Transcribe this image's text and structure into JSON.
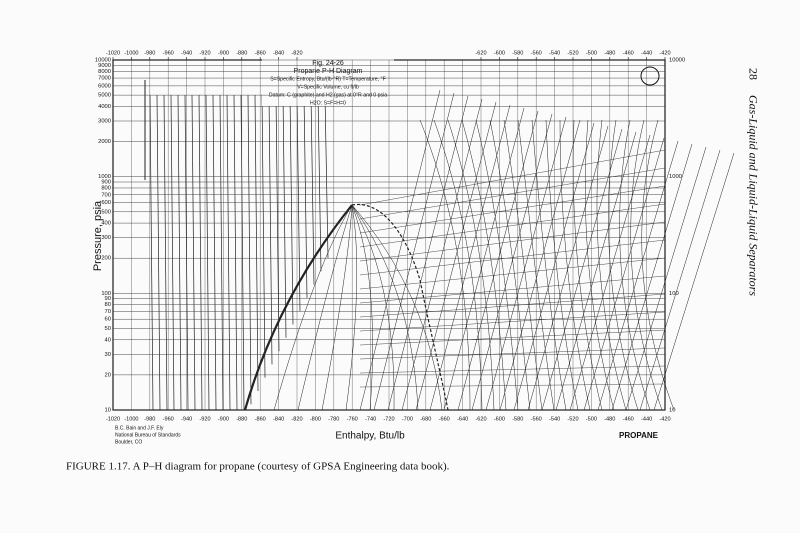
{
  "header": {
    "page_number": "28",
    "running_title": "Gas-Liquid and Liquid-Liquid Separators"
  },
  "figure": {
    "title_block": [
      "Fig. 24-26",
      "Propane P-H Diagram",
      "S=Specific Entropy, Btu/(lb·°R)  T=Temperature, °F",
      "V=Specific Volume, cu ft/lb",
      "Datum: C (graphite) and H2 (gas) at 0°R and 0 psia",
      "H2O: S=F=H=0"
    ],
    "x_axis_label": "Enthalpy, Btu/lb",
    "y_axis_label": "Pressure, psia",
    "bottom_ticks": [
      -1020,
      -1000,
      -980,
      -960,
      -940,
      -920,
      -900,
      -880,
      -860,
      -840,
      -820,
      -800,
      -780,
      -760,
      -740,
      -720,
      -700,
      -680,
      -660,
      -640,
      -620,
      -600,
      -580,
      -560,
      -540,
      -520,
      -500,
      -480,
      -460,
      -440,
      -420
    ],
    "top_ticks_left": [
      -1020,
      -1000,
      -980,
      -960,
      -940,
      -920,
      -900,
      -880,
      -860,
      -840,
      -820
    ],
    "top_ticks_right": [
      -620,
      -600,
      -580,
      -560,
      -540,
      -520,
      -500,
      -480,
      -460,
      -440,
      -420
    ],
    "left_ticks": [
      10000,
      9000,
      8000,
      7000,
      6000,
      5000,
      4000,
      3000,
      2000,
      1000,
      900,
      800,
      700,
      600,
      500,
      400,
      300,
      200,
      100,
      90,
      80,
      70,
      60,
      50,
      40,
      30,
      20,
      10
    ],
    "right_ticks": [
      10000,
      1000,
      100,
      10
    ],
    "credits": [
      "B.C. Bain and J.F. Ely",
      "National Bureau of Standards",
      "Boulder, CO"
    ],
    "substance": "PROPANE"
  },
  "caption": "FIGURE 1.17. A P–H diagram for propane (courtesy of GPSA Engineering data book)."
}
